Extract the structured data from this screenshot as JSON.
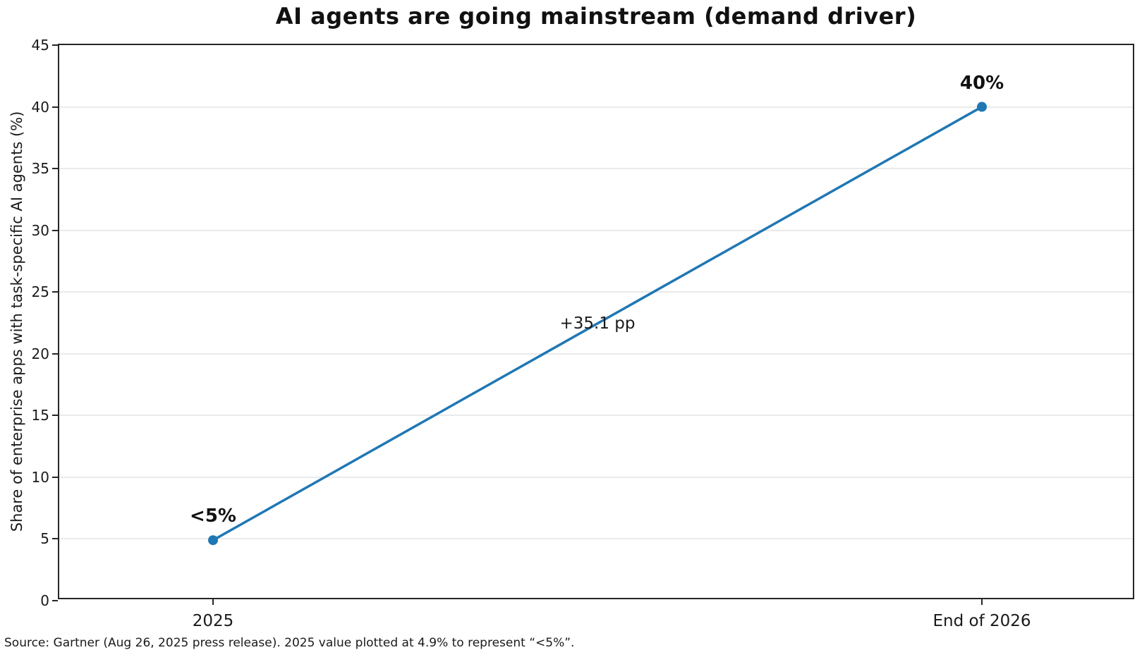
{
  "title": "AI agents are going mainstream (demand driver)",
  "source_note": "Source: Gartner (Aug 26, 2025 press release). 2025 value plotted at 4.9% to represent “<5%”.",
  "chart_data": {
    "type": "line",
    "title": "AI agents are going mainstream (demand driver)",
    "xlabel": "",
    "ylabel": "Share of enterprise apps with task-specific AI agents (%)",
    "categories": [
      "2025",
      "End of 2026"
    ],
    "x": [
      0,
      1
    ],
    "series": [
      {
        "name": "Share of enterprise apps with task-specific AI agents",
        "values": [
          4.9,
          40
        ]
      }
    ],
    "point_labels": [
      "<5%",
      "40%"
    ],
    "annotation": "+35.1 pp",
    "yticks": [
      0,
      5,
      10,
      15,
      20,
      25,
      30,
      35,
      40,
      45
    ],
    "ylim": [
      0,
      45
    ],
    "xlim": [
      -0.2,
      1.2
    ],
    "grid": "horizontal-only",
    "legend": "none",
    "line_color": "#1f77b4",
    "marker": "circle",
    "grid_color": "#eaeaea",
    "spine_color": "#262626",
    "text_color": "#1a1a1a"
  }
}
